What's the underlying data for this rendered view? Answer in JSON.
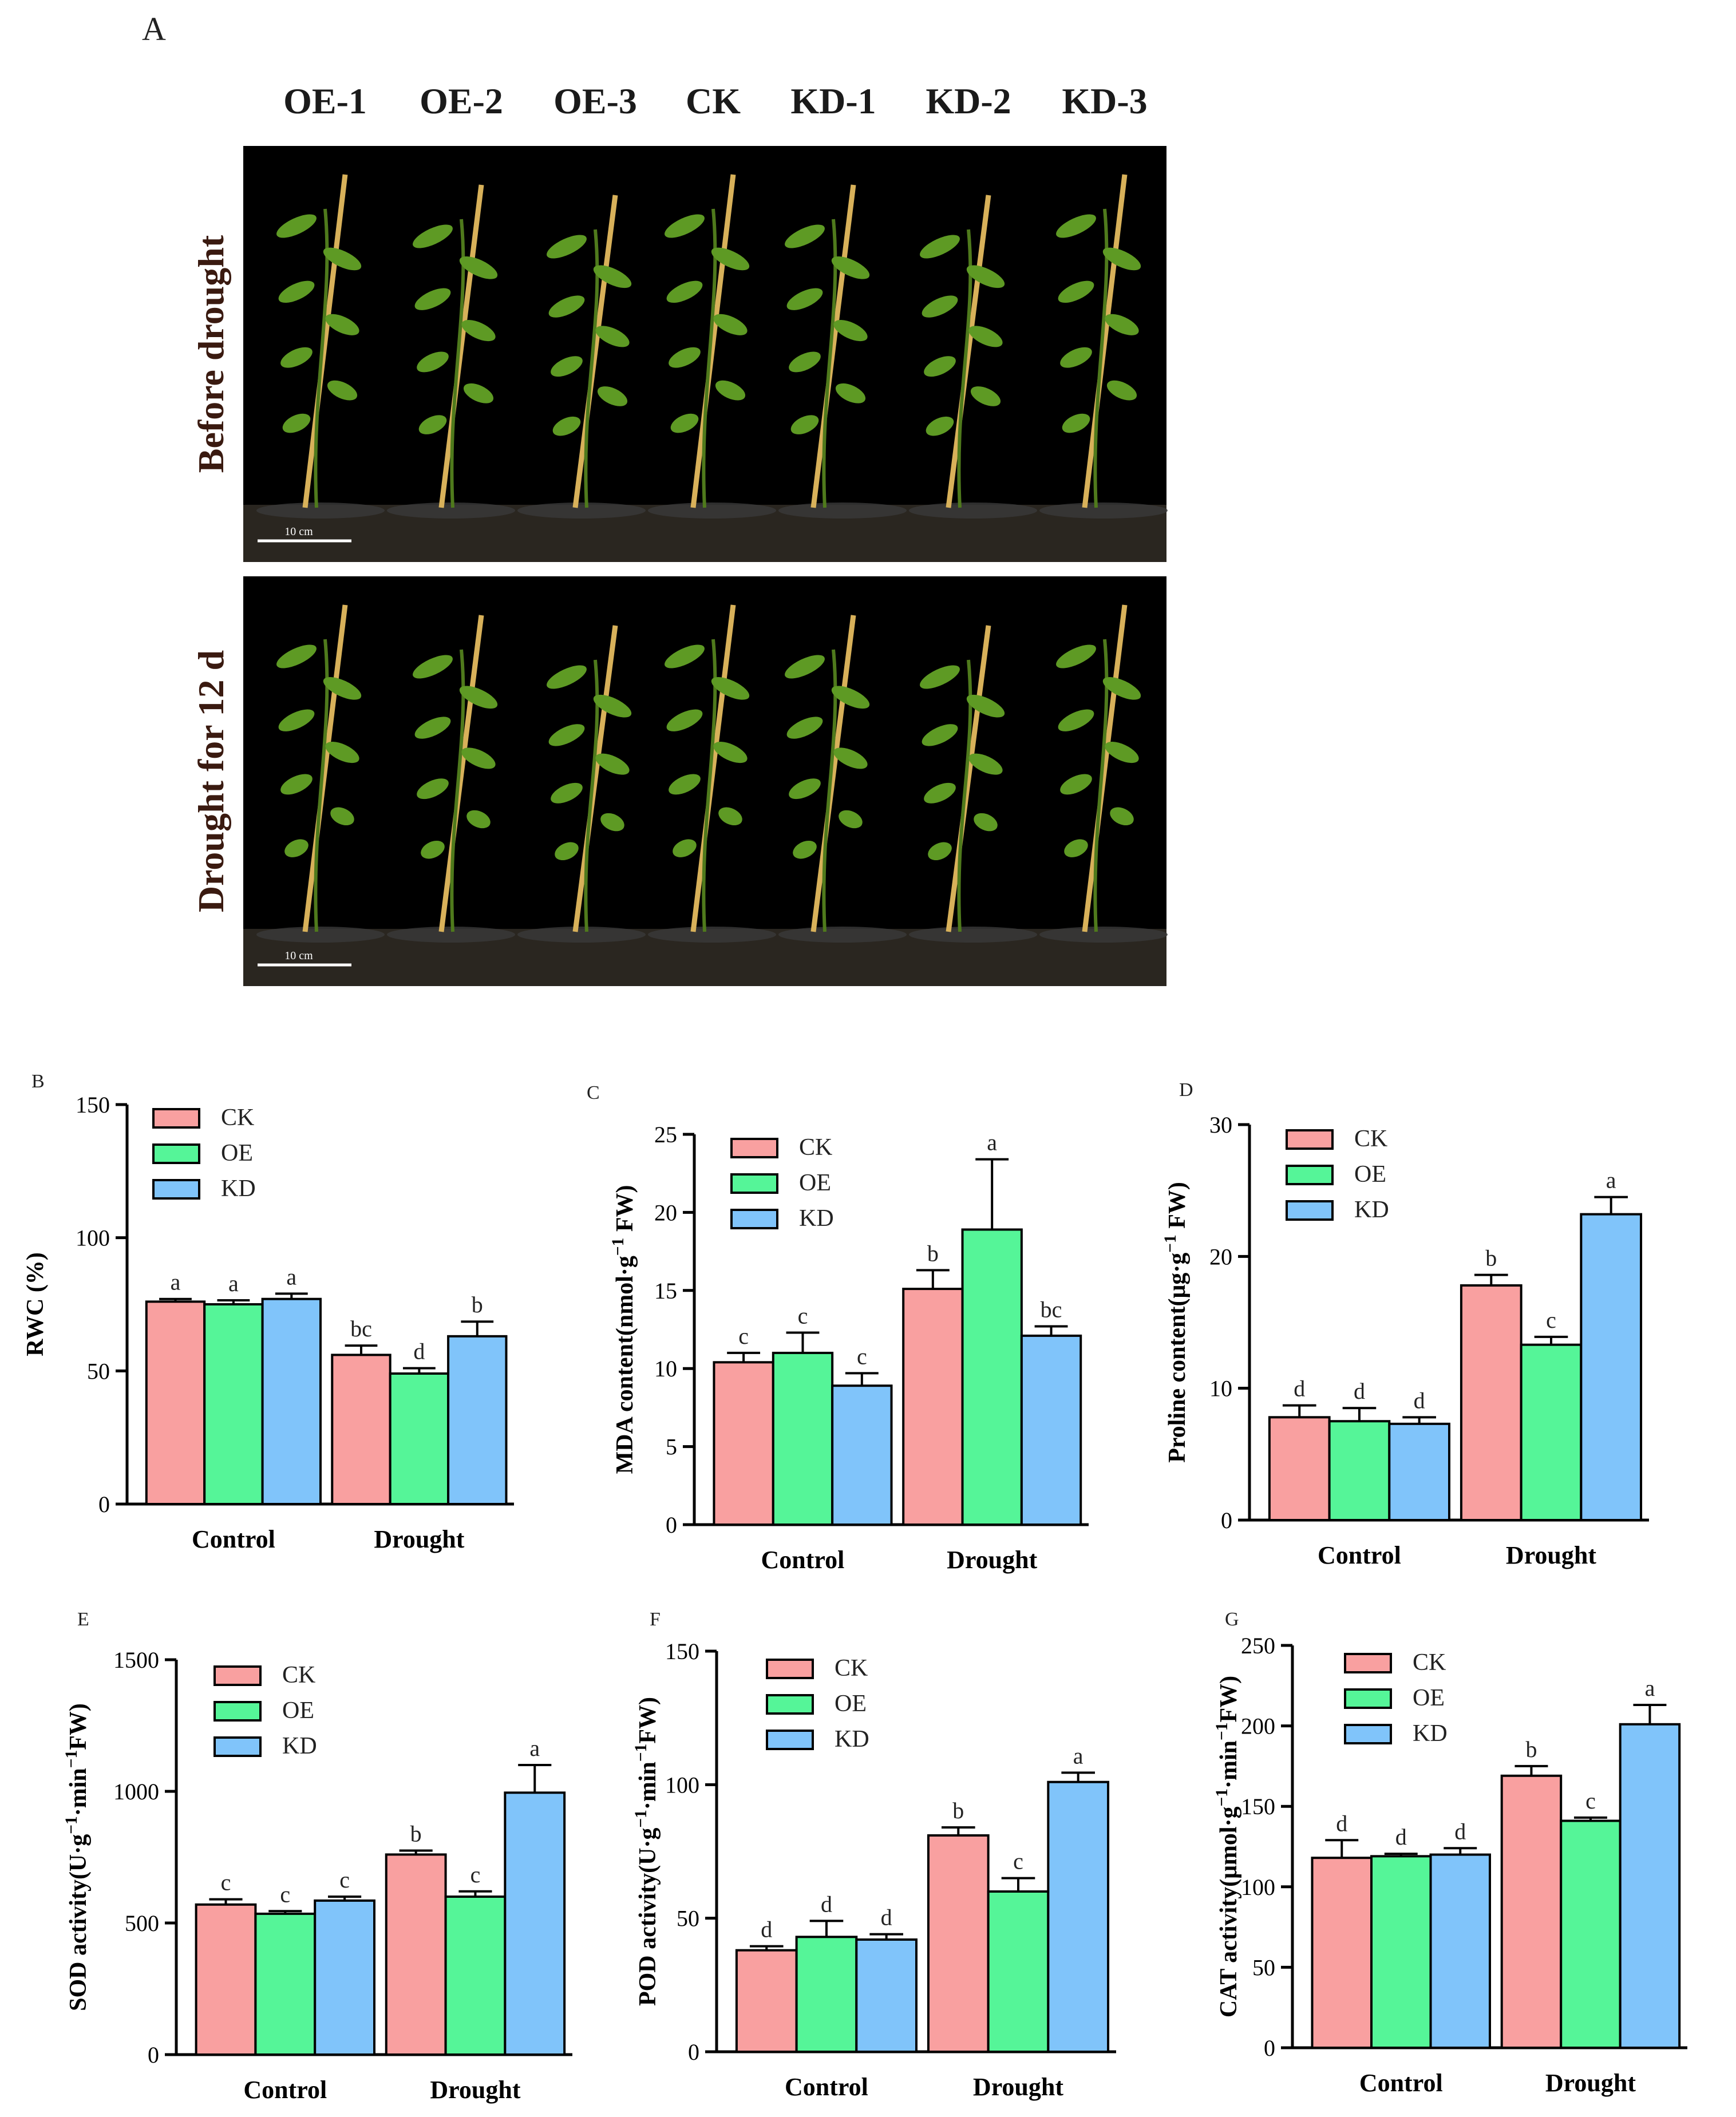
{
  "figure": {
    "panel_a": {
      "letter": "A",
      "genotypes": [
        "OE-1",
        "OE-2",
        "OE-3",
        "CK",
        "KD-1",
        "KD-2",
        "KD-3"
      ],
      "rows": [
        {
          "label": "Before drought",
          "scale_bar": "10 cm"
        },
        {
          "label": "Drought for 12 d",
          "scale_bar": "10 cm"
        }
      ],
      "colors": {
        "background": "#000000",
        "stem": "#4f7a1c",
        "leaf": "#5e9a24",
        "stake": "#d8b15a",
        "soil": "#2a2620",
        "pot": "#3a3a3a"
      }
    },
    "colors": {
      "CK": "#f9a0a0",
      "OE": "#55f598",
      "KD": "#80c4fa"
    }
  },
  "chart_data": [
    {
      "panel": "B",
      "type": "bar",
      "categories": [
        "Control",
        "Drought"
      ],
      "ylabel": "RWC (%)",
      "ylim": [
        0,
        150
      ],
      "yticks": [
        0,
        50,
        100,
        150
      ],
      "legend": [
        "CK",
        "OE",
        "KD"
      ],
      "legend_position": "top-left",
      "series": [
        {
          "name": "CK",
          "values": [
            76,
            56
          ],
          "errors": [
            1,
            3.5
          ],
          "letters": [
            "a",
            "bc"
          ]
        },
        {
          "name": "OE",
          "values": [
            75,
            49
          ],
          "errors": [
            1.5,
            2
          ],
          "letters": [
            "a",
            "d"
          ]
        },
        {
          "name": "KD",
          "values": [
            77,
            63
          ],
          "errors": [
            2,
            5.5
          ],
          "letters": [
            "a",
            "b"
          ]
        }
      ]
    },
    {
      "panel": "C",
      "type": "bar",
      "categories": [
        "Control",
        "Drought"
      ],
      "ylabel": "MDA content(nmol·g⁻¹ FW)",
      "ylim": [
        0,
        25
      ],
      "yticks": [
        0,
        5,
        10,
        15,
        20,
        25
      ],
      "legend": [
        "CK",
        "OE",
        "KD"
      ],
      "legend_position": "top-left",
      "series": [
        {
          "name": "CK",
          "values": [
            10.4,
            15.1
          ],
          "errors": [
            0.6,
            1.2
          ],
          "letters": [
            "c",
            "b"
          ]
        },
        {
          "name": "OE",
          "values": [
            11.0,
            18.9
          ],
          "errors": [
            1.3,
            4.5
          ],
          "letters": [
            "c",
            "a"
          ]
        },
        {
          "name": "KD",
          "values": [
            8.9,
            12.1
          ],
          "errors": [
            0.8,
            0.6
          ],
          "letters": [
            "c",
            "bc"
          ]
        }
      ]
    },
    {
      "panel": "D",
      "type": "bar",
      "categories": [
        "Control",
        "Drought"
      ],
      "ylabel": "Proline content(μg·g⁻¹ FW)",
      "ylim": [
        0,
        30
      ],
      "yticks": [
        0,
        10,
        20,
        30
      ],
      "legend": [
        "CK",
        "OE",
        "KD"
      ],
      "legend_position": "top-left",
      "series": [
        {
          "name": "CK",
          "values": [
            7.8,
            17.8
          ],
          "errors": [
            0.9,
            0.8
          ],
          "letters": [
            "d",
            "b"
          ]
        },
        {
          "name": "OE",
          "values": [
            7.5,
            13.3
          ],
          "errors": [
            1.0,
            0.6
          ],
          "letters": [
            "d",
            "c"
          ]
        },
        {
          "name": "KD",
          "values": [
            7.3,
            23.2
          ],
          "errors": [
            0.5,
            1.3
          ],
          "letters": [
            "d",
            "a"
          ]
        }
      ]
    },
    {
      "panel": "E",
      "type": "bar",
      "categories": [
        "Control",
        "Drought"
      ],
      "ylabel": "SOD activity(U·g⁻¹·min⁻¹FW)",
      "ylim": [
        0,
        1500
      ],
      "yticks": [
        0,
        500,
        1000,
        1500
      ],
      "legend": [
        "CK",
        "OE",
        "KD"
      ],
      "legend_position": "top-left",
      "series": [
        {
          "name": "CK",
          "values": [
            570,
            760
          ],
          "errors": [
            20,
            15
          ],
          "letters": [
            "c",
            "b"
          ]
        },
        {
          "name": "OE",
          "values": [
            535,
            600
          ],
          "errors": [
            10,
            20
          ],
          "letters": [
            "c",
            "c"
          ]
        },
        {
          "name": "KD",
          "values": [
            585,
            995
          ],
          "errors": [
            15,
            105
          ],
          "letters": [
            "c",
            "a"
          ]
        }
      ]
    },
    {
      "panel": "F",
      "type": "bar",
      "categories": [
        "Control",
        "Drought"
      ],
      "ylabel": "POD activity(U·g⁻¹·min⁻¹FW)",
      "ylim": [
        0,
        150
      ],
      "yticks": [
        0,
        50,
        100,
        150
      ],
      "legend": [
        "CK",
        "OE",
        "KD"
      ],
      "legend_position": "top-left",
      "series": [
        {
          "name": "CK",
          "values": [
            38,
            81
          ],
          "errors": [
            1.5,
            3
          ],
          "letters": [
            "d",
            "b"
          ]
        },
        {
          "name": "OE",
          "values": [
            43,
            60
          ],
          "errors": [
            6,
            5
          ],
          "letters": [
            "d",
            "c"
          ]
        },
        {
          "name": "KD",
          "values": [
            42,
            101
          ],
          "errors": [
            2,
            3.5
          ],
          "letters": [
            "d",
            "a"
          ]
        }
      ]
    },
    {
      "panel": "G",
      "type": "bar",
      "categories": [
        "Control",
        "Drought"
      ],
      "ylabel": "CAT activity(μmol·g⁻¹·min⁻¹FW)",
      "ylim": [
        0,
        250
      ],
      "yticks": [
        0,
        50,
        100,
        150,
        200,
        250
      ],
      "legend": [
        "CK",
        "OE",
        "KD"
      ],
      "legend_position": "top-left",
      "series": [
        {
          "name": "CK",
          "values": [
            118,
            169
          ],
          "errors": [
            11,
            6
          ],
          "letters": [
            "d",
            "b"
          ]
        },
        {
          "name": "OE",
          "values": [
            119,
            141
          ],
          "errors": [
            1.5,
            2
          ],
          "letters": [
            "d",
            "c"
          ]
        },
        {
          "name": "KD",
          "values": [
            120,
            201
          ],
          "errors": [
            4,
            12
          ],
          "letters": [
            "d",
            "a"
          ]
        }
      ]
    }
  ]
}
